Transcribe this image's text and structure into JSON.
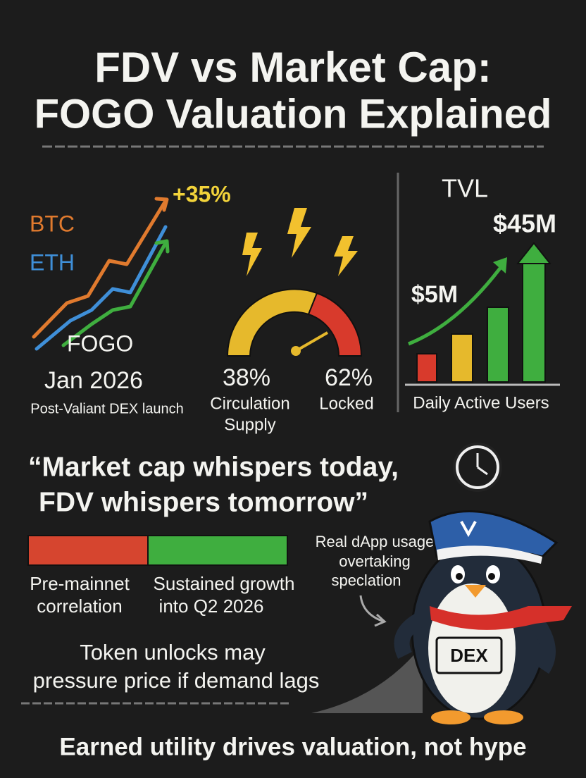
{
  "header": {
    "title_lines": [
      "FDV vs Market Cap:",
      "FOGO Valuation Explained"
    ]
  },
  "price_panel": {
    "gain": "+35%",
    "labels": [
      "BTC",
      "ETH",
      "FOGO"
    ],
    "date": "Jan 2026",
    "caption": "Post-Valiant DEX launch"
  },
  "supply_panel": {
    "circulating": {
      "percent": "38%",
      "label_lines": [
        "Circulation",
        "Supply"
      ]
    },
    "locked": {
      "percent": "62%",
      "label": "Locked"
    }
  },
  "tvl_panel": {
    "title": "TVL",
    "high": "$45M",
    "low": "$5M",
    "caption": "Daily Active Users"
  },
  "quote_lines": [
    "“Market cap whispers today,",
    "FDV whispers tomorrow”"
  ],
  "timeline": {
    "segments": [
      {
        "label_lines": [
          "Pre-mainnet",
          "correlation"
        ]
      },
      {
        "label_lines": [
          "Sustained growth",
          "into Q2 2026"
        ]
      }
    ]
  },
  "note_lines": [
    "Real dApp usage",
    "overtaking",
    "speclation"
  ],
  "warning_lines": [
    "Token unlocks may",
    "pressure price if demand lags"
  ],
  "mascot": {
    "badge": "DEX"
  },
  "footer": "Earned utility drives valuation, not hype"
}
